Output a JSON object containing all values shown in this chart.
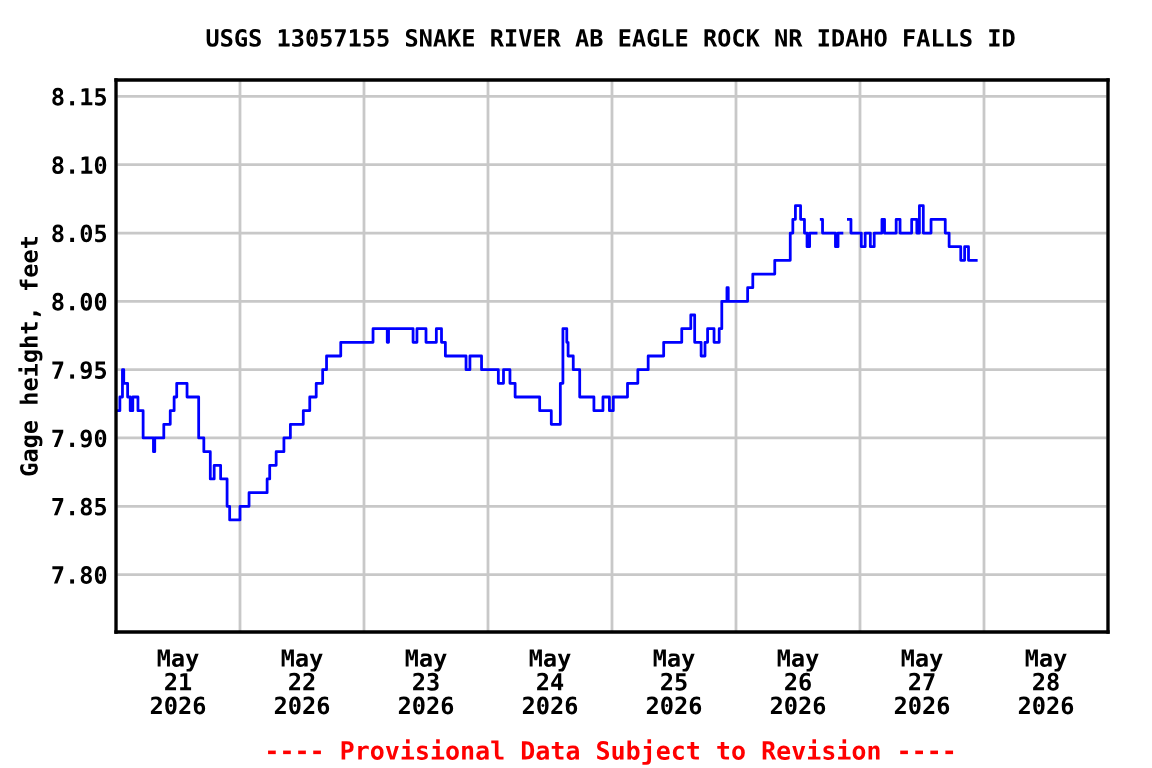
{
  "chart_data": {
    "type": "step",
    "title": "USGS 13057155 SNAKE RIVER AB EAGLE ROCK NR IDAHO FALLS ID",
    "ylabel": "Gage height, feet",
    "annotations": [
      "---- Provisional Data Subject to Revision ----"
    ],
    "xlim": [
      "2026-05-21T00:00",
      "2026-05-29T00:00"
    ],
    "ylim": [
      7.758,
      8.162
    ],
    "yticks": [
      {
        "value": 7.8,
        "label": "7.80"
      },
      7.85,
      {
        "value": 7.9,
        "label": "7.90"
      },
      7.95,
      {
        "value": 8.0,
        "label": "8.00"
      },
      8.05,
      {
        "value": 8.1,
        "label": "8.10"
      },
      8.15
    ],
    "xticks": [
      {
        "value": "2026-05-21T00:00",
        "label": null
      },
      {
        "value": "2026-05-21T12:00",
        "label": "May\n21\n2026"
      },
      {
        "value": "2026-05-22T00:00",
        "label": null
      },
      {
        "value": "2026-05-22T12:00",
        "label": "May\n22\n2026"
      },
      {
        "value": "2026-05-23T00:00",
        "label": null
      },
      {
        "value": "2026-05-23T12:00",
        "label": "May\n23\n2026"
      },
      {
        "value": "2026-05-24T00:00",
        "label": null
      },
      {
        "value": "2026-05-24T12:00",
        "label": "May\n24\n2026"
      },
      {
        "value": "2026-05-25T00:00",
        "label": null
      },
      {
        "value": "2026-05-25T12:00",
        "label": "May\n25\n2026"
      },
      {
        "value": "2026-05-26T00:00",
        "label": null
      },
      {
        "value": "2026-05-26T12:00",
        "label": "May\n26\n2026"
      },
      {
        "value": "2026-05-27T00:00",
        "label": null
      },
      {
        "value": "2026-05-27T12:00",
        "label": "May\n27\n2026"
      },
      {
        "value": "2026-05-28T00:00",
        "label": null
      },
      {
        "value": "2026-05-28T12:00",
        "label": "May\n28\n2026"
      },
      {
        "value": "2026-05-29T00:00",
        "label": null
      }
    ],
    "grid": true,
    "series": [
      {
        "color": "#0000ff",
        "x": [
          "2026-05-21T00:00",
          "2026-05-21T00:45",
          "2026-05-21T01:15",
          "2026-05-21T01:30",
          "2026-05-21T02:15",
          "2026-05-21T02:45",
          "2026-05-21T03:15",
          "2026-05-21T04:00",
          "2026-05-21T04:15",
          "2026-05-21T05:15",
          "2026-05-21T06:00",
          "2026-05-21T07:15",
          "2026-05-21T07:30",
          "2026-05-21T08:30",
          "2026-05-21T09:15",
          "2026-05-21T10:30",
          "2026-05-21T11:15",
          "2026-05-21T11:45",
          "2026-05-21T13:45",
          "2026-05-21T16:00",
          "2026-05-21T17:00",
          "2026-05-21T18:15",
          "2026-05-21T19:00",
          "2026-05-21T20:15",
          "2026-05-21T21:30",
          "2026-05-21T22:00",
          "2026-05-22T00:00",
          "2026-05-22T00:30",
          "2026-05-22T01:45",
          "2026-05-22T05:15",
          "2026-05-22T05:45",
          "2026-05-22T07:00",
          "2026-05-22T08:30",
          "2026-05-22T09:45",
          "2026-05-22T12:15",
          "2026-05-22T13:30",
          "2026-05-22T14:45",
          "2026-05-22T16:00",
          "2026-05-22T16:45",
          "2026-05-22T17:30",
          "2026-05-22T19:30",
          "2026-05-23T01:45",
          "2026-05-23T04:30",
          "2026-05-23T04:45",
          "2026-05-23T09:30",
          "2026-05-23T10:15",
          "2026-05-23T12:00",
          "2026-05-23T12:45",
          "2026-05-23T14:00",
          "2026-05-23T15:00",
          "2026-05-23T15:45",
          "2026-05-23T16:15",
          "2026-05-23T19:45",
          "2026-05-23T20:30",
          "2026-05-23T21:15",
          "2026-05-23T22:45",
          "2026-05-24T01:00",
          "2026-05-24T02:00",
          "2026-05-24T03:00",
          "2026-05-24T04:15",
          "2026-05-24T05:15",
          "2026-05-24T10:00",
          "2026-05-24T12:15",
          "2026-05-24T14:00",
          "2026-05-24T14:30",
          "2026-05-24T15:15",
          "2026-05-24T15:30",
          "2026-05-24T16:30",
          "2026-05-24T17:45",
          "2026-05-24T18:45",
          "2026-05-24T20:30",
          "2026-05-24T22:15",
          "2026-05-24T23:30",
          "2026-05-25T00:15",
          "2026-05-25T03:00",
          "2026-05-25T05:00",
          "2026-05-25T07:00",
          "2026-05-25T10:00",
          "2026-05-25T13:30",
          "2026-05-25T15:15",
          "2026-05-25T16:00",
          "2026-05-25T17:15",
          "2026-05-25T18:00",
          "2026-05-25T18:30",
          "2026-05-25T19:45",
          "2026-05-25T20:45",
          "2026-05-25T21:15",
          "2026-05-25T22:15",
          "2026-05-25T22:30",
          "2026-05-26T02:15",
          "2026-05-26T03:15",
          "2026-05-26T07:30",
          "2026-05-26T10:30",
          "2026-05-26T11:00",
          "2026-05-26T11:30",
          "2026-05-26T12:30",
          "2026-05-26T13:15",
          "2026-05-26T13:45",
          "2026-05-26T14:15",
          "2026-05-26T14:30",
          "2026-05-26T15:30",
          "2026-05-26T16:30",
          "2026-05-26T16:45",
          "2026-05-26T18:45",
          "2026-05-26T19:15",
          "2026-05-26T19:45",
          "2026-05-26T20:30",
          "2026-05-26T21:45",
          "2026-05-26T22:15",
          "2026-05-27T00:15",
          "2026-05-27T01:00",
          "2026-05-27T02:00",
          "2026-05-27T02:45",
          "2026-05-27T04:15",
          "2026-05-27T04:45",
          "2026-05-27T07:00",
          "2026-05-27T07:45",
          "2026-05-27T10:00",
          "2026-05-27T11:00",
          "2026-05-27T11:30",
          "2026-05-27T12:15",
          "2026-05-27T13:45",
          "2026-05-27T16:30",
          "2026-05-27T17:15",
          "2026-05-27T19:30",
          "2026-05-27T20:15",
          "2026-05-27T21:00",
          "2026-05-27T22:30"
        ],
        "values": [
          7.92,
          7.93,
          7.95,
          7.94,
          7.93,
          7.92,
          7.93,
          7.93,
          7.92,
          7.9,
          7.9,
          7.89,
          7.9,
          7.9,
          7.91,
          7.92,
          7.93,
          7.94,
          7.93,
          7.9,
          7.89,
          7.87,
          7.88,
          7.87,
          7.85,
          7.84,
          7.85,
          7.85,
          7.86,
          7.87,
          7.88,
          7.89,
          7.9,
          7.91,
          7.92,
          7.93,
          7.94,
          7.95,
          7.96,
          7.96,
          7.97,
          7.98,
          7.97,
          7.98,
          7.97,
          7.98,
          7.97,
          7.97,
          7.98,
          7.97,
          7.96,
          7.96,
          7.95,
          7.96,
          7.96,
          7.95,
          7.95,
          7.94,
          7.95,
          7.94,
          7.93,
          7.92,
          7.91,
          7.94,
          7.98,
          7.97,
          7.96,
          7.95,
          7.93,
          7.93,
          7.92,
          7.93,
          7.92,
          7.93,
          7.94,
          7.95,
          7.96,
          7.97,
          7.98,
          7.99,
          7.97,
          7.96,
          7.97,
          7.98,
          7.97,
          7.98,
          8.0,
          8.01,
          8.0,
          8.01,
          8.02,
          8.03,
          8.05,
          8.06,
          8.07,
          8.06,
          8.05,
          8.04,
          8.05,
          8.05,
          null,
          8.06,
          8.05,
          8.05,
          8.04,
          8.05,
          null,
          8.06,
          8.05,
          8.04,
          8.05,
          8.04,
          8.05,
          8.06,
          8.05,
          8.06,
          8.05,
          8.06,
          8.05,
          8.07,
          8.05,
          8.06,
          8.05,
          8.04,
          8.03,
          8.04,
          8.03,
          8.03
        ]
      }
    ]
  }
}
